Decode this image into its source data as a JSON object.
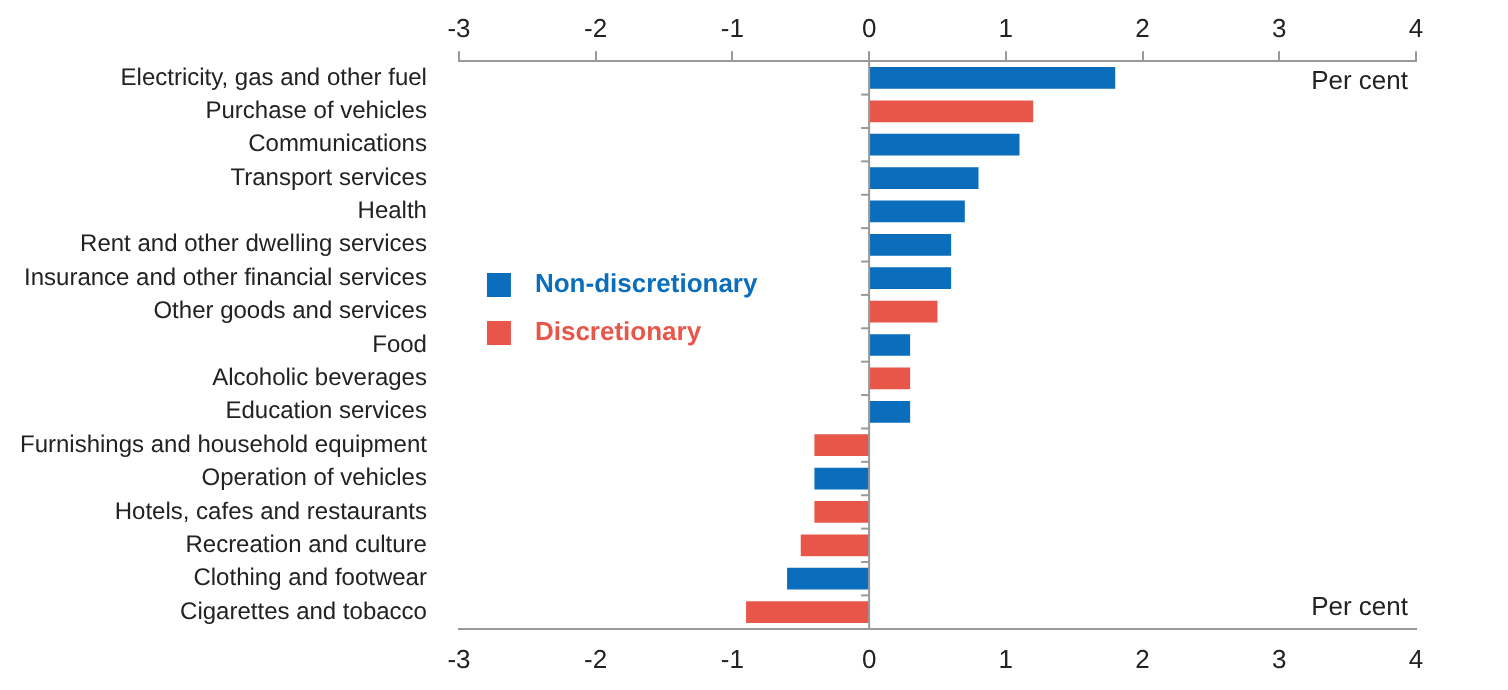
{
  "chart_data": {
    "type": "bar",
    "orientation": "horizontal",
    "categories": [
      "Electricity, gas and other fuel",
      "Purchase of vehicles",
      "Communications",
      "Transport services",
      "Health",
      "Rent and other dwelling services",
      "Insurance and other financial services",
      "Other goods and services",
      "Food",
      "Alcoholic beverages",
      "Education services",
      "Furnishings and household equipment",
      "Operation of vehicles",
      "Hotels, cafes and restaurants",
      "Recreation and culture",
      "Clothing and footwear",
      "Cigarettes and tobacco"
    ],
    "series": [
      {
        "name": "Non-discretionary",
        "color": "#0a6ebd",
        "values": [
          1.8,
          null,
          1.1,
          0.8,
          0.7,
          0.6,
          0.6,
          null,
          0.3,
          null,
          0.3,
          null,
          -0.4,
          null,
          null,
          -0.6,
          null
        ]
      },
      {
        "name": "Discretionary",
        "color": "#e8564a",
        "values": [
          null,
          1.2,
          null,
          null,
          null,
          null,
          null,
          0.5,
          null,
          0.3,
          null,
          -0.4,
          null,
          -0.4,
          -0.5,
          null,
          -0.9
        ]
      }
    ],
    "xlim": [
      -3,
      4
    ],
    "xticks": [
      -3,
      -2,
      -1,
      0,
      1,
      2,
      3,
      4
    ],
    "x2lim": [
      -3,
      4
    ],
    "x2ticks": [
      -3,
      -2,
      -1,
      0,
      1,
      2,
      3,
      4
    ],
    "annotations": [
      "Per cent",
      "Per cent"
    ],
    "legend": "left"
  }
}
